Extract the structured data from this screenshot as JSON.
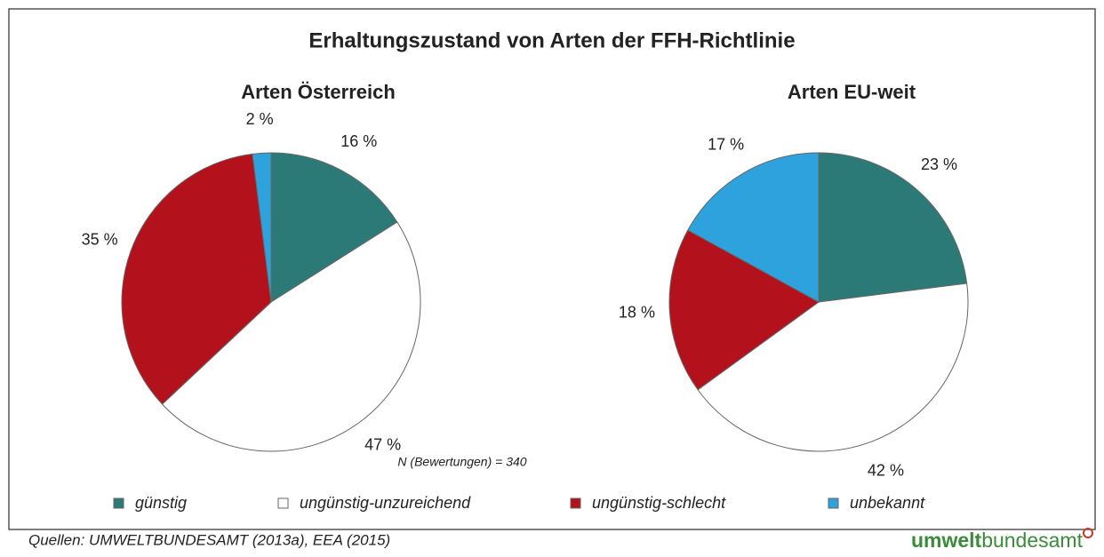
{
  "title": "Erhaltungszustand von Arten der FFH-Richtlinie",
  "note": "N (Bewertungen) = 340",
  "source": "Quellen: UMWELTBUNDESAMT (2013a), EEA (2015)",
  "logo": {
    "bold": "umwelt",
    "regular": "bundesamt"
  },
  "chart_data": [
    {
      "type": "pie",
      "title": "Arten Österreich",
      "categories": [
        "günstig",
        "ungünstig-unzureichend",
        "ungünstig-schlecht",
        "unbekannt"
      ],
      "values": [
        16,
        47,
        35,
        2
      ],
      "value_labels": [
        "16 %",
        "47 %",
        "35 %",
        "2 %"
      ],
      "colors": [
        "#2b7a77",
        "#ffffff",
        "#b3121c",
        "#2ea2dc"
      ]
    },
    {
      "type": "pie",
      "title": "Arten EU-weit",
      "categories": [
        "günstig",
        "ungünstig-unzureichend",
        "ungünstig-schlecht",
        "unbekannt"
      ],
      "values": [
        23,
        42,
        18,
        17
      ],
      "value_labels": [
        "23 %",
        "42 %",
        "18 %",
        "17 %"
      ],
      "colors": [
        "#2b7a77",
        "#ffffff",
        "#b3121c",
        "#2ea2dc"
      ]
    }
  ]
}
